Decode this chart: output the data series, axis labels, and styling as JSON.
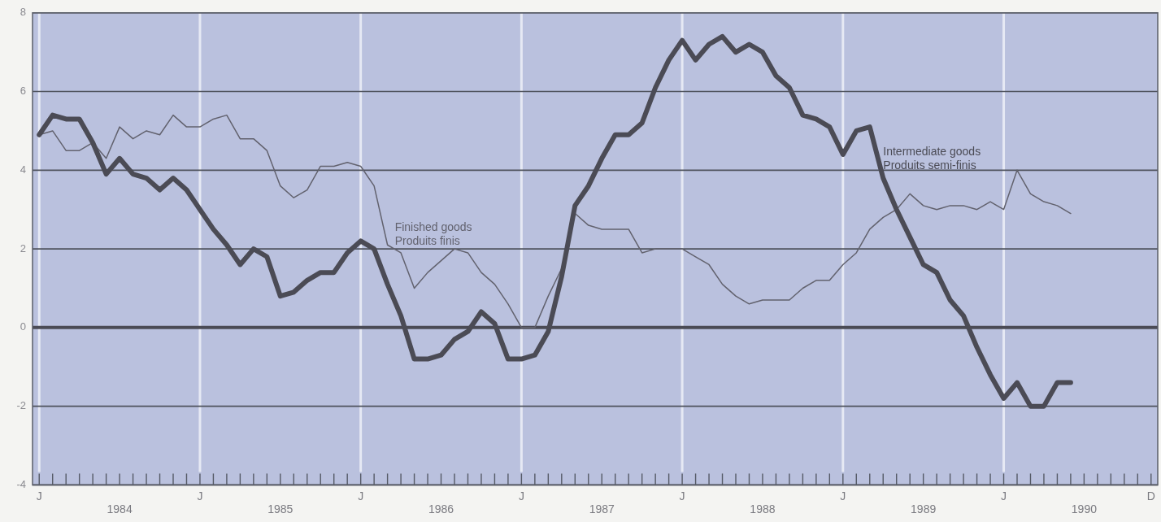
{
  "chart_data": {
    "type": "line",
    "categories": [
      "J",
      null,
      null,
      null,
      null,
      null,
      "1984",
      null,
      null,
      null,
      null,
      null,
      "J",
      null,
      null,
      null,
      null,
      null,
      "1985",
      null,
      null,
      null,
      null,
      null,
      "J",
      null,
      null,
      null,
      null,
      null,
      "1986",
      null,
      null,
      null,
      null,
      null,
      "J",
      null,
      null,
      null,
      null,
      null,
      "1987",
      null,
      null,
      null,
      null,
      null,
      "J",
      null,
      null,
      null,
      null,
      null,
      "1988",
      null,
      null,
      null,
      null,
      null,
      "J",
      null,
      null,
      null,
      null,
      null,
      "1989",
      null,
      null,
      null,
      null,
      null,
      "J",
      null,
      null,
      null,
      null,
      null,
      "1990",
      null,
      null,
      null,
      null,
      "D"
    ],
    "series": [
      {
        "name": "Intermediate goods\nProduits semi-finis",
        "color": "#4b4b55",
        "values": [
          4.9,
          5.4,
          5.3,
          5.3,
          4.7,
          3.9,
          4.3,
          3.9,
          3.8,
          3.5,
          3.8,
          3.5,
          3.0,
          2.5,
          2.1,
          1.6,
          2.0,
          1.8,
          0.8,
          0.9,
          1.2,
          1.4,
          1.4,
          1.9,
          2.2,
          2.0,
          1.1,
          0.3,
          -0.8,
          -0.8,
          -0.7,
          -0.3,
          -0.1,
          0.4,
          0.1,
          -0.8,
          -0.8,
          -0.7,
          -0.1,
          1.3,
          3.1,
          3.6,
          4.3,
          4.9,
          4.9,
          5.2,
          6.1,
          6.8,
          7.3,
          6.8,
          7.2,
          7.4,
          7.0,
          7.2,
          7.0,
          6.4,
          6.1,
          5.4,
          5.3,
          5.1,
          4.4,
          5.0,
          5.1,
          3.8,
          3.0,
          2.3,
          1.6,
          1.4,
          0.7,
          0.3,
          -0.5,
          -1.2,
          -1.8,
          -1.4,
          -2.0,
          -2.0,
          -1.4,
          -1.4,
          null,
          null,
          null,
          null,
          null,
          null
        ]
      },
      {
        "name": "Finished goods\nProduits finis",
        "color": "#62626e",
        "values": [
          4.9,
          5.0,
          4.5,
          4.5,
          4.7,
          4.3,
          5.1,
          4.8,
          5.0,
          4.9,
          5.4,
          5.1,
          5.1,
          5.3,
          5.4,
          4.8,
          4.8,
          4.5,
          3.6,
          3.3,
          3.5,
          4.1,
          4.1,
          4.2,
          4.1,
          3.6,
          2.1,
          1.9,
          1.0,
          1.4,
          1.7,
          2.0,
          1.9,
          1.4,
          1.1,
          0.6,
          0.0,
          0.0,
          0.8,
          1.5,
          2.9,
          2.6,
          2.5,
          2.5,
          2.5,
          1.9,
          2.0,
          2.0,
          2.0,
          1.8,
          1.6,
          1.1,
          0.8,
          0.6,
          0.7,
          0.7,
          0.7,
          1.0,
          1.2,
          1.2,
          1.6,
          1.9,
          2.5,
          2.8,
          3.0,
          3.4,
          3.1,
          3.0,
          3.1,
          3.1,
          3.0,
          3.2,
          3.0,
          4.0,
          3.4,
          3.2,
          3.1,
          2.9,
          null,
          null,
          null,
          null,
          null,
          null
        ]
      }
    ],
    "ref_lines": [
      {
        "axis": "y",
        "value": 0,
        "color": "#4b4b55"
      }
    ],
    "ylim": [
      -4,
      8
    ],
    "yticks": [
      -4,
      -2,
      0,
      2,
      4,
      6,
      8
    ],
    "grid": true
  }
}
